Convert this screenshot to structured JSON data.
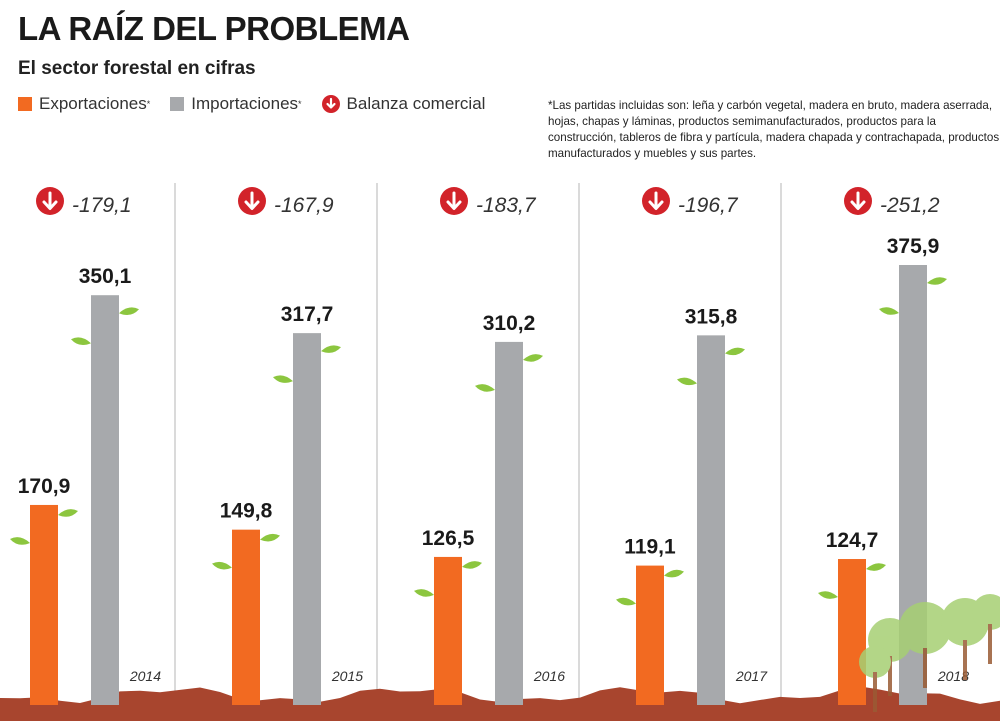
{
  "title": "LA RAÍZ DEL PROBLEMA",
  "subtitle": "El sector forestal en cifras",
  "legend": {
    "exports": "Exportaciones",
    "imports": "Importaciones",
    "balance": "Balanza comercial",
    "asterisk": "*"
  },
  "note": "*Las partidas incluidas son: leña y carbón vegetal, madera en bruto, madera aserrada, hojas, chapas y láminas, productos semimanufacturados, productos para la construcción, tableros de fibra y partícula, madera chapada y contrachapada, productos manufacturados y muebles y sus partes.",
  "colors": {
    "exports": "#f26a21",
    "imports": "#a7a9ac",
    "balance": "#d2232a",
    "leaf": "#8cc63f",
    "ground": "#a8452e",
    "divider": "#b5b5b5"
  },
  "icons": {
    "balance": "down-arrow-circle-icon"
  },
  "chart_data": {
    "type": "bar",
    "categories": [
      "2014",
      "2015",
      "2016",
      "2017",
      "2018"
    ],
    "series": [
      {
        "name": "Exportaciones",
        "values": [
          170.9,
          149.8,
          126.5,
          119.1,
          124.7
        ],
        "labels": [
          "170,9",
          "149,8",
          "126,5",
          "119,1",
          "124,7"
        ]
      },
      {
        "name": "Importaciones",
        "values": [
          350.1,
          317.7,
          310.2,
          315.8,
          375.9
        ],
        "labels": [
          "350,1",
          "317,7",
          "310,2",
          "315,8",
          "375,9"
        ]
      }
    ],
    "balance": {
      "name": "Balanza comercial",
      "values": [
        -179.1,
        -167.9,
        -183.7,
        -196.7,
        -251.2
      ],
      "labels": [
        "-179,1",
        "-167,9",
        "-183,7",
        "-196,7",
        "-251,2"
      ]
    },
    "title": "LA RAÍZ DEL PROBLEMA",
    "subtitle": "El sector forestal en cifras",
    "ylim": [
      0,
      375.9
    ],
    "grid": false,
    "legend_position": "top-left"
  }
}
